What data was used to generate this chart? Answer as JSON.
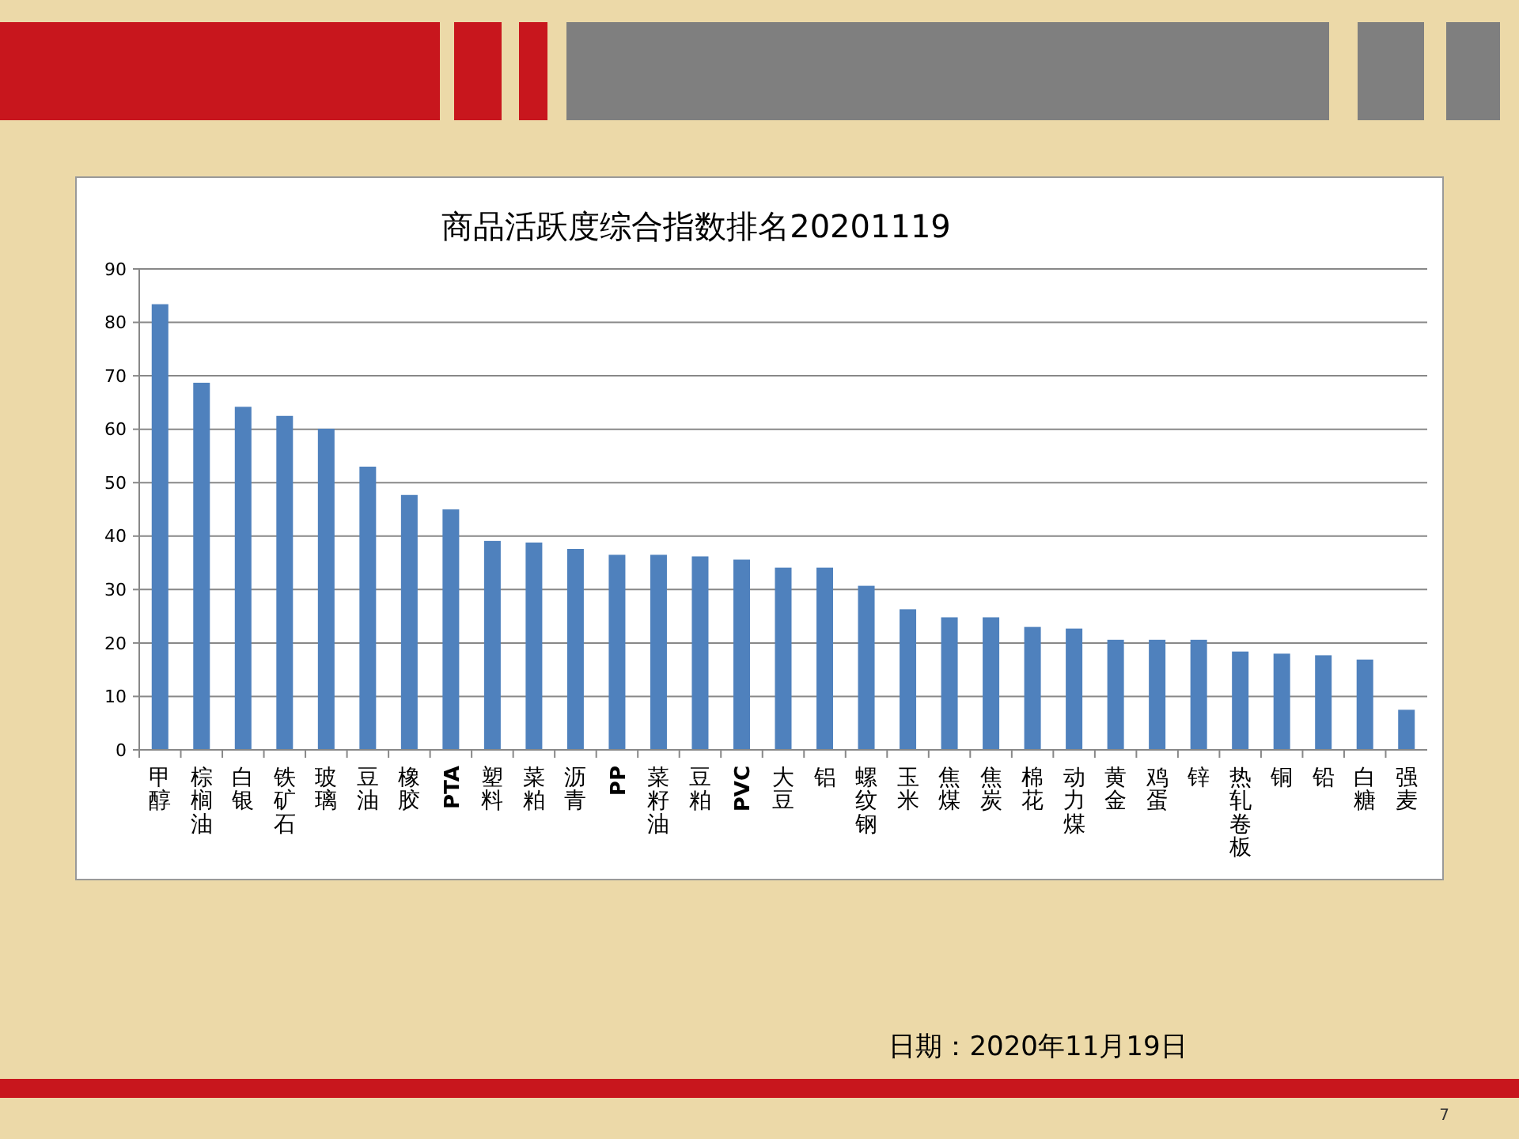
{
  "chart_data": {
    "type": "bar",
    "title": "商品活跃度综合指数排名20201119",
    "categories": [
      "甲醇",
      "棕榈油",
      "白银",
      "铁矿石",
      "玻璃",
      "豆油",
      "橡胶",
      "PTA",
      "塑料",
      "菜粕",
      "沥青",
      "PP",
      "菜籽油",
      "豆粕",
      "PVC",
      "大豆",
      "铝",
      "螺纹钢",
      "玉米",
      "焦煤",
      "焦炭",
      "棉花",
      "动力煤",
      "黄金",
      "鸡蛋",
      "锌",
      "热轧卷板",
      "铜",
      "铅",
      "白糖",
      "强麦"
    ],
    "values": [
      83.4,
      68.7,
      64.2,
      62.5,
      60.1,
      53.0,
      47.7,
      45.0,
      39.1,
      38.8,
      37.6,
      36.5,
      36.5,
      36.2,
      35.6,
      34.1,
      34.1,
      30.7,
      26.3,
      24.8,
      24.8,
      23.0,
      22.7,
      20.6,
      20.6,
      20.6,
      18.4,
      18.0,
      17.7,
      16.9,
      7.5
    ],
    "color": "#4f81bd",
    "ylim": [
      0,
      90
    ],
    "yticks": [
      0,
      10,
      20,
      30,
      40,
      50,
      60,
      70,
      80,
      90
    ],
    "grid": "y",
    "annotations": [
      "日期：2020年11月19日",
      "7"
    ]
  }
}
